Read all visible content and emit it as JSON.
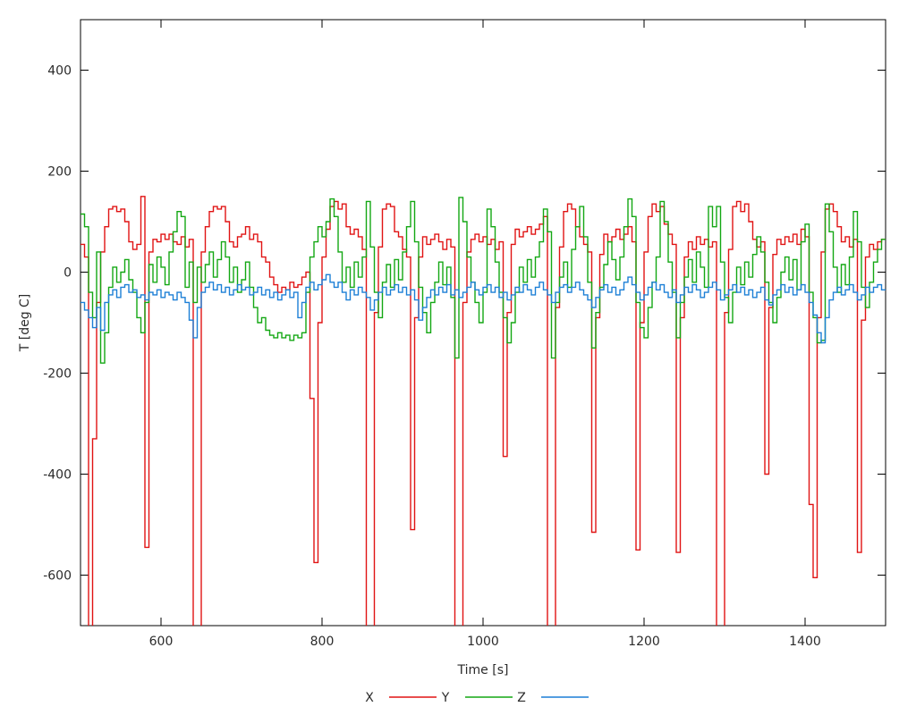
{
  "chart_data": {
    "type": "line",
    "line_style": "steps",
    "xlabel": "Time [s]",
    "ylabel": "T [deg C]",
    "xlim": [
      500,
      1500
    ],
    "ylim": [
      -700,
      500
    ],
    "xticks": [
      600,
      800,
      1000,
      1200,
      1400
    ],
    "yticks": [
      400,
      200,
      0,
      -200,
      -400,
      -600
    ],
    "x_start": 500,
    "x_step": 5,
    "grid": false,
    "legend_position": "bottom-center",
    "background_color": "#ffffff",
    "axis_color": "#000000",
    "text_color": "#2b2b2b",
    "clip_note": "values below -700 are clipped at plot bottom",
    "series": [
      {
        "name": "X",
        "color": "#e01313",
        "values": [
          55,
          30,
          -750,
          -330,
          -60,
          40,
          90,
          125,
          130,
          120,
          125,
          100,
          60,
          45,
          55,
          150,
          -545,
          40,
          65,
          60,
          75,
          65,
          75,
          60,
          55,
          70,
          50,
          65,
          -750,
          -750,
          40,
          90,
          120,
          130,
          125,
          130,
          100,
          60,
          50,
          70,
          75,
          90,
          65,
          75,
          60,
          30,
          20,
          -10,
          -25,
          -40,
          -30,
          -35,
          -20,
          -30,
          -25,
          -10,
          0,
          -250,
          -575,
          -100,
          30,
          85,
          130,
          140,
          125,
          135,
          90,
          75,
          85,
          70,
          45,
          -750,
          -750,
          -80,
          50,
          125,
          135,
          130,
          80,
          70,
          45,
          30,
          -510,
          -90,
          30,
          70,
          55,
          65,
          75,
          60,
          45,
          65,
          50,
          -750,
          -750,
          -60,
          40,
          65,
          75,
          60,
          70,
          55,
          65,
          45,
          60,
          -365,
          -80,
          55,
          85,
          70,
          80,
          90,
          75,
          85,
          95,
          110,
          -750,
          -750,
          -70,
          50,
          120,
          135,
          125,
          90,
          70,
          55,
          40,
          -515,
          -90,
          35,
          75,
          60,
          70,
          85,
          65,
          75,
          90,
          60,
          -550,
          -100,
          40,
          110,
          135,
          120,
          130,
          95,
          75,
          55,
          -555,
          -90,
          30,
          60,
          45,
          70,
          55,
          65,
          50,
          60,
          -750,
          -750,
          -80,
          45,
          130,
          140,
          120,
          135,
          100,
          65,
          50,
          60,
          -400,
          -70,
          35,
          65,
          55,
          70,
          60,
          75,
          55,
          85,
          70,
          -460,
          -605,
          -90,
          40,
          125,
          135,
          120,
          90,
          60,
          70,
          50,
          65,
          -555,
          -95,
          30,
          55,
          45,
          60,
          65
        ]
      },
      {
        "name": "Y",
        "color": "#13a713",
        "values": [
          115,
          90,
          -40,
          -90,
          40,
          -180,
          -120,
          -30,
          10,
          -20,
          0,
          25,
          -15,
          -40,
          -90,
          -120,
          -60,
          15,
          -20,
          30,
          10,
          -25,
          40,
          80,
          120,
          110,
          -30,
          20,
          -60,
          10,
          -20,
          15,
          40,
          -10,
          25,
          60,
          30,
          -20,
          10,
          -40,
          -15,
          20,
          -30,
          -70,
          -100,
          -90,
          -115,
          -125,
          -130,
          -120,
          -130,
          -125,
          -135,
          -125,
          -130,
          -120,
          -40,
          30,
          60,
          90,
          70,
          100,
          145,
          110,
          40,
          -20,
          10,
          -30,
          20,
          -10,
          30,
          140,
          50,
          -40,
          -90,
          -20,
          15,
          -30,
          25,
          -15,
          40,
          90,
          140,
          60,
          -30,
          -80,
          -120,
          -60,
          -20,
          20,
          -25,
          10,
          -50,
          -170,
          148,
          100,
          30,
          -20,
          -60,
          -100,
          -40,
          125,
          90,
          20,
          -40,
          -90,
          -140,
          -100,
          -40,
          10,
          -20,
          25,
          -10,
          30,
          60,
          125,
          80,
          -170,
          -60,
          -10,
          20,
          -30,
          45,
          90,
          130,
          70,
          -20,
          -150,
          -80,
          -30,
          15,
          60,
          25,
          -15,
          30,
          90,
          145,
          110,
          -60,
          -110,
          -130,
          -70,
          -20,
          30,
          140,
          100,
          20,
          -40,
          -130,
          -60,
          -10,
          25,
          -20,
          40,
          10,
          -30,
          130,
          90,
          130,
          20,
          -50,
          -100,
          -40,
          10,
          -25,
          20,
          -10,
          35,
          70,
          40,
          -20,
          -60,
          -100,
          -50,
          0,
          30,
          -15,
          25,
          -35,
          60,
          95,
          -40,
          -90,
          -140,
          -135,
          135,
          80,
          10,
          -40,
          15,
          -25,
          30,
          120,
          60,
          -30,
          -70,
          -20,
          20,
          45,
          65
        ]
      },
      {
        "name": "Z",
        "color": "#1c7fd6",
        "values": [
          -60,
          -75,
          -90,
          -110,
          -70,
          -115,
          -60,
          -45,
          -35,
          -50,
          -30,
          -25,
          -40,
          -35,
          -50,
          -45,
          -55,
          -40,
          -45,
          -35,
          -50,
          -40,
          -45,
          -55,
          -40,
          -50,
          -60,
          -95,
          -130,
          -70,
          -40,
          -30,
          -20,
          -35,
          -25,
          -40,
          -30,
          -45,
          -35,
          -25,
          -35,
          -30,
          -45,
          -40,
          -30,
          -45,
          -35,
          -50,
          -40,
          -55,
          -45,
          -35,
          -50,
          -40,
          -90,
          -60,
          -30,
          -20,
          -35,
          -25,
          -15,
          -5,
          -20,
          -30,
          -20,
          -40,
          -55,
          -35,
          -45,
          -30,
          -40,
          -50,
          -75,
          -55,
          -40,
          -30,
          -45,
          -35,
          -25,
          -40,
          -30,
          -45,
          -35,
          -55,
          -95,
          -70,
          -50,
          -35,
          -45,
          -30,
          -40,
          -25,
          -45,
          -35,
          -50,
          -40,
          -30,
          -20,
          -35,
          -45,
          -30,
          -25,
          -40,
          -30,
          -50,
          -40,
          -55,
          -45,
          -30,
          -40,
          -25,
          -35,
          -45,
          -30,
          -20,
          -35,
          -45,
          -60,
          -40,
          -30,
          -25,
          -40,
          -30,
          -20,
          -35,
          -45,
          -55,
          -70,
          -50,
          -35,
          -25,
          -40,
          -30,
          -45,
          -35,
          -20,
          -10,
          -25,
          -40,
          -55,
          -45,
          -30,
          -20,
          -35,
          -25,
          -40,
          -50,
          -35,
          -60,
          -45,
          -30,
          -40,
          -25,
          -35,
          -50,
          -40,
          -30,
          -20,
          -35,
          -55,
          -45,
          -35,
          -25,
          -40,
          -30,
          -45,
          -35,
          -50,
          -40,
          -30,
          -55,
          -65,
          -45,
          -35,
          -25,
          -40,
          -30,
          -45,
          -35,
          -25,
          -40,
          -60,
          -85,
          -120,
          -140,
          -90,
          -55,
          -40,
          -30,
          -45,
          -35,
          -25,
          -40,
          -55,
          -45,
          -30,
          -40,
          -30,
          -25,
          -35
        ]
      }
    ]
  }
}
